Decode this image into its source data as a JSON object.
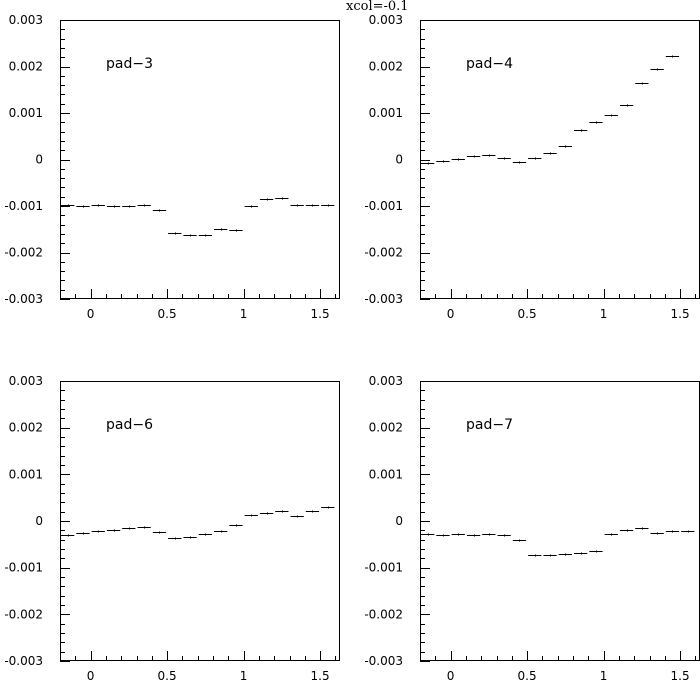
{
  "figure": {
    "title": "xcol=-0.1"
  },
  "chart_data": [
    {
      "type": "line",
      "label": "pad−3",
      "xlim": [
        -0.2,
        1.63
      ],
      "ylim": [
        -0.003,
        0.003
      ],
      "x_ticks": [
        "0",
        "0.5",
        "1",
        "1.5"
      ],
      "y_ticks": [
        "0.003",
        "0.002",
        "0.001",
        "0",
        "-0.001",
        "-0.002",
        "-0.003"
      ],
      "bin_width": 0.1,
      "x_start": -0.2,
      "values": [
        -0.00097,
        -0.00099,
        -0.00098,
        -0.00101,
        -0.00099,
        -0.00098,
        -0.00108,
        -0.00157,
        -0.00163,
        -0.00163,
        -0.0015,
        -0.00152,
        -0.001,
        -0.00084,
        -0.00082,
        -0.00098,
        -0.00098,
        -0.00098
      ]
    },
    {
      "type": "line",
      "label": "pad−4",
      "xlim": [
        -0.2,
        1.63
      ],
      "ylim": [
        -0.003,
        0.003
      ],
      "x_ticks": [
        "0",
        "0.5",
        "1",
        "1.5"
      ],
      "y_ticks": [
        "0.003",
        "0.002",
        "0.001",
        "0",
        "-0.001",
        "-0.002",
        "-0.003"
      ],
      "bin_width": 0.1,
      "x_start": -0.2,
      "values": [
        -7e-05,
        -4e-05,
        1e-05,
        7e-05,
        0.0001,
        3e-05,
        -6e-05,
        3e-05,
        0.00014,
        0.00029,
        0.00064,
        0.00081,
        0.00096,
        0.00117,
        0.00165,
        0.00195,
        0.00222
      ]
    },
    {
      "type": "line",
      "label": "pad−6",
      "xlim": [
        -0.2,
        1.63
      ],
      "ylim": [
        -0.003,
        0.003
      ],
      "x_ticks": [
        "0",
        "0.5",
        "1",
        "1.5"
      ],
      "y_ticks": [
        "0.003",
        "0.002",
        "0.001",
        "0",
        "-0.001",
        "-0.002",
        "-0.003"
      ],
      "bin_width": 0.1,
      "x_start": -0.2,
      "values": [
        -0.00029,
        -0.00025,
        -0.00021,
        -0.0002,
        -0.00015,
        -0.00013,
        -0.00023,
        -0.00037,
        -0.00035,
        -0.00028,
        -0.00022,
        -8e-05,
        0.00013,
        0.00018,
        0.00022,
        0.00011,
        0.00021,
        0.00029
      ]
    },
    {
      "type": "line",
      "label": "pad−7",
      "xlim": [
        -0.2,
        1.63
      ],
      "ylim": [
        -0.003,
        0.003
      ],
      "x_ticks": [
        "0",
        "0.5",
        "1",
        "1.5"
      ],
      "y_ticks": [
        "0.003",
        "0.002",
        "0.001",
        "0",
        "-0.001",
        "-0.002",
        "-0.003"
      ],
      "bin_width": 0.1,
      "x_start": -0.2,
      "values": [
        -0.00028,
        -0.00029,
        -0.00027,
        -0.00029,
        -0.00028,
        -0.00029,
        -0.0004,
        -0.00072,
        -0.00073,
        -0.0007,
        -0.00068,
        -0.00065,
        -0.00027,
        -0.00019,
        -0.00016,
        -0.00025,
        -0.00021,
        -0.00021
      ]
    }
  ]
}
